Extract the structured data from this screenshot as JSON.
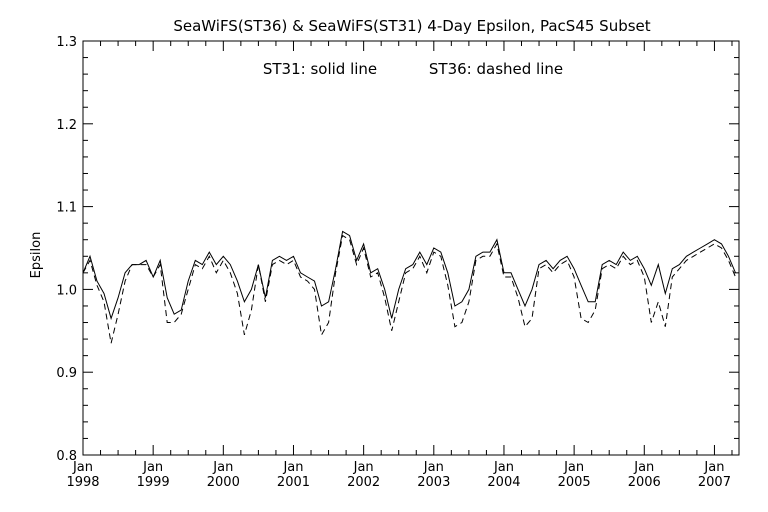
{
  "chart_data": {
    "type": "line",
    "title": "SeaWiFS(ST36) & SeaWiFS(ST31) 4-Day Epsilon, PacS45 Subset",
    "annotations": {
      "solid_note": "ST31: solid line",
      "dashed_note": "ST36: dashed line"
    },
    "xlabel": "",
    "ylabel": "Epsilon",
    "xlim": [
      1998.0,
      2007.35
    ],
    "ylim": [
      0.8,
      1.3
    ],
    "grid": false,
    "y_ticks": [
      "0.8",
      "0.9",
      "1.0",
      "1.1",
      "1.2",
      "1.3"
    ],
    "x_ticks": [
      {
        "month": "Jan",
        "year": "1998",
        "x": 1998
      },
      {
        "month": "Jan",
        "year": "1999",
        "x": 1999
      },
      {
        "month": "Jan",
        "year": "2000",
        "x": 2000
      },
      {
        "month": "Jan",
        "year": "2001",
        "x": 2001
      },
      {
        "month": "Jan",
        "year": "2002",
        "x": 2002
      },
      {
        "month": "Jan",
        "year": "2003",
        "x": 2003
      },
      {
        "month": "Jan",
        "year": "2004",
        "x": 2004
      },
      {
        "month": "Jan",
        "year": "2005",
        "x": 2005
      },
      {
        "month": "Jan",
        "year": "2006",
        "x": 2006
      },
      {
        "month": "Jan",
        "year": "2007",
        "x": 2007
      }
    ],
    "series": [
      {
        "name": "ST31",
        "style": "solid",
        "x": [
          1998.0,
          1998.1,
          1998.2,
          1998.3,
          1998.4,
          1998.5,
          1998.6,
          1998.7,
          1998.8,
          1998.9,
          1999.0,
          1999.1,
          1999.2,
          1999.3,
          1999.4,
          1999.5,
          1999.6,
          1999.7,
          1999.8,
          1999.9,
          2000.0,
          2000.1,
          2000.2,
          2000.3,
          2000.4,
          2000.5,
          2000.6,
          2000.7,
          2000.8,
          2000.9,
          2001.0,
          2001.1,
          2001.2,
          2001.3,
          2001.4,
          2001.5,
          2001.6,
          2001.7,
          2001.8,
          2001.9,
          2002.0,
          2002.1,
          2002.2,
          2002.3,
          2002.4,
          2002.5,
          2002.6,
          2002.7,
          2002.8,
          2002.9,
          2003.0,
          2003.1,
          2003.2,
          2003.3,
          2003.4,
          2003.5,
          2003.6,
          2003.7,
          2003.8,
          2003.9,
          2004.0,
          2004.1,
          2004.2,
          2004.3,
          2004.4,
          2004.5,
          2004.6,
          2004.7,
          2004.8,
          2004.9,
          2005.0,
          2005.1,
          2005.2,
          2005.3,
          2005.4,
          2005.5,
          2005.6,
          2005.7,
          2005.8,
          2005.9,
          2006.0,
          2006.1,
          2006.2,
          2006.3,
          2006.4,
          2006.5,
          2006.6,
          2006.7,
          2006.8,
          2006.9,
          2007.0,
          2007.1,
          2007.2,
          2007.3
        ],
        "values": [
          1.02,
          1.04,
          1.01,
          0.995,
          0.965,
          0.99,
          1.02,
          1.03,
          1.03,
          1.035,
          1.015,
          1.035,
          0.99,
          0.97,
          0.975,
          1.01,
          1.035,
          1.03,
          1.045,
          1.03,
          1.04,
          1.03,
          1.01,
          0.985,
          1.0,
          1.03,
          0.99,
          1.035,
          1.04,
          1.035,
          1.04,
          1.02,
          1.015,
          1.01,
          0.98,
          0.985,
          1.025,
          1.07,
          1.065,
          1.035,
          1.055,
          1.02,
          1.025,
          1.0,
          0.965,
          1.0,
          1.025,
          1.03,
          1.045,
          1.03,
          1.05,
          1.045,
          1.02,
          0.98,
          0.985,
          1.0,
          1.04,
          1.045,
          1.045,
          1.06,
          1.02,
          1.02,
          1.0,
          0.98,
          1.0,
          1.03,
          1.035,
          1.025,
          1.035,
          1.04,
          1.025,
          1.005,
          0.985,
          0.985,
          1.03,
          1.035,
          1.03,
          1.045,
          1.035,
          1.04,
          1.025,
          1.005,
          1.03,
          0.995,
          1.025,
          1.03,
          1.04,
          1.045,
          1.05,
          1.055,
          1.06,
          1.055,
          1.04,
          1.02
        ]
      },
      {
        "name": "ST36",
        "style": "dashed",
        "x": [
          1998.0,
          1998.1,
          1998.2,
          1998.3,
          1998.4,
          1998.5,
          1998.6,
          1998.7,
          1998.8,
          1998.9,
          1999.0,
          1999.1,
          1999.2,
          1999.3,
          1999.4,
          1999.5,
          1999.6,
          1999.7,
          1999.8,
          1999.9,
          2000.0,
          2000.1,
          2000.2,
          2000.3,
          2000.4,
          2000.5,
          2000.6,
          2000.7,
          2000.8,
          2000.9,
          2001.0,
          2001.1,
          2001.2,
          2001.3,
          2001.4,
          2001.5,
          2001.6,
          2001.7,
          2001.8,
          2001.9,
          2002.0,
          2002.1,
          2002.2,
          2002.3,
          2002.4,
          2002.5,
          2002.6,
          2002.7,
          2002.8,
          2002.9,
          2003.0,
          2003.1,
          2003.2,
          2003.3,
          2003.4,
          2003.5,
          2003.6,
          2003.7,
          2003.8,
          2003.9,
          2004.0,
          2004.1,
          2004.2,
          2004.3,
          2004.4,
          2004.5,
          2004.6,
          2004.7,
          2004.8,
          2004.9,
          2005.0,
          2005.1,
          2005.2,
          2005.3,
          2005.4,
          2005.5,
          2005.6,
          2005.7,
          2005.8,
          2005.9,
          2006.0,
          2006.1,
          2006.2,
          2006.3,
          2006.4,
          2006.5,
          2006.6,
          2006.7,
          2006.8,
          2006.9,
          2007.0,
          2007.1,
          2007.2,
          2007.3
        ],
        "values": [
          1.02,
          1.035,
          1.005,
          0.985,
          0.935,
          0.97,
          1.01,
          1.03,
          1.03,
          1.03,
          1.015,
          1.03,
          0.96,
          0.96,
          0.97,
          1.0,
          1.03,
          1.025,
          1.04,
          1.02,
          1.035,
          1.02,
          0.995,
          0.945,
          0.975,
          1.03,
          0.985,
          1.03,
          1.035,
          1.03,
          1.035,
          1.015,
          1.01,
          1.0,
          0.945,
          0.96,
          1.02,
          1.065,
          1.06,
          1.03,
          1.05,
          1.015,
          1.02,
          0.99,
          0.95,
          0.985,
          1.02,
          1.025,
          1.04,
          1.02,
          1.045,
          1.04,
          1.005,
          0.955,
          0.96,
          0.985,
          1.035,
          1.04,
          1.04,
          1.055,
          1.015,
          1.015,
          0.99,
          0.955,
          0.965,
          1.025,
          1.03,
          1.02,
          1.03,
          1.035,
          1.015,
          0.965,
          0.96,
          0.975,
          1.025,
          1.03,
          1.025,
          1.04,
          1.03,
          1.035,
          1.015,
          0.96,
          0.985,
          0.955,
          1.015,
          1.025,
          1.035,
          1.04,
          1.045,
          1.05,
          1.055,
          1.05,
          1.035,
          1.015
        ]
      }
    ]
  }
}
